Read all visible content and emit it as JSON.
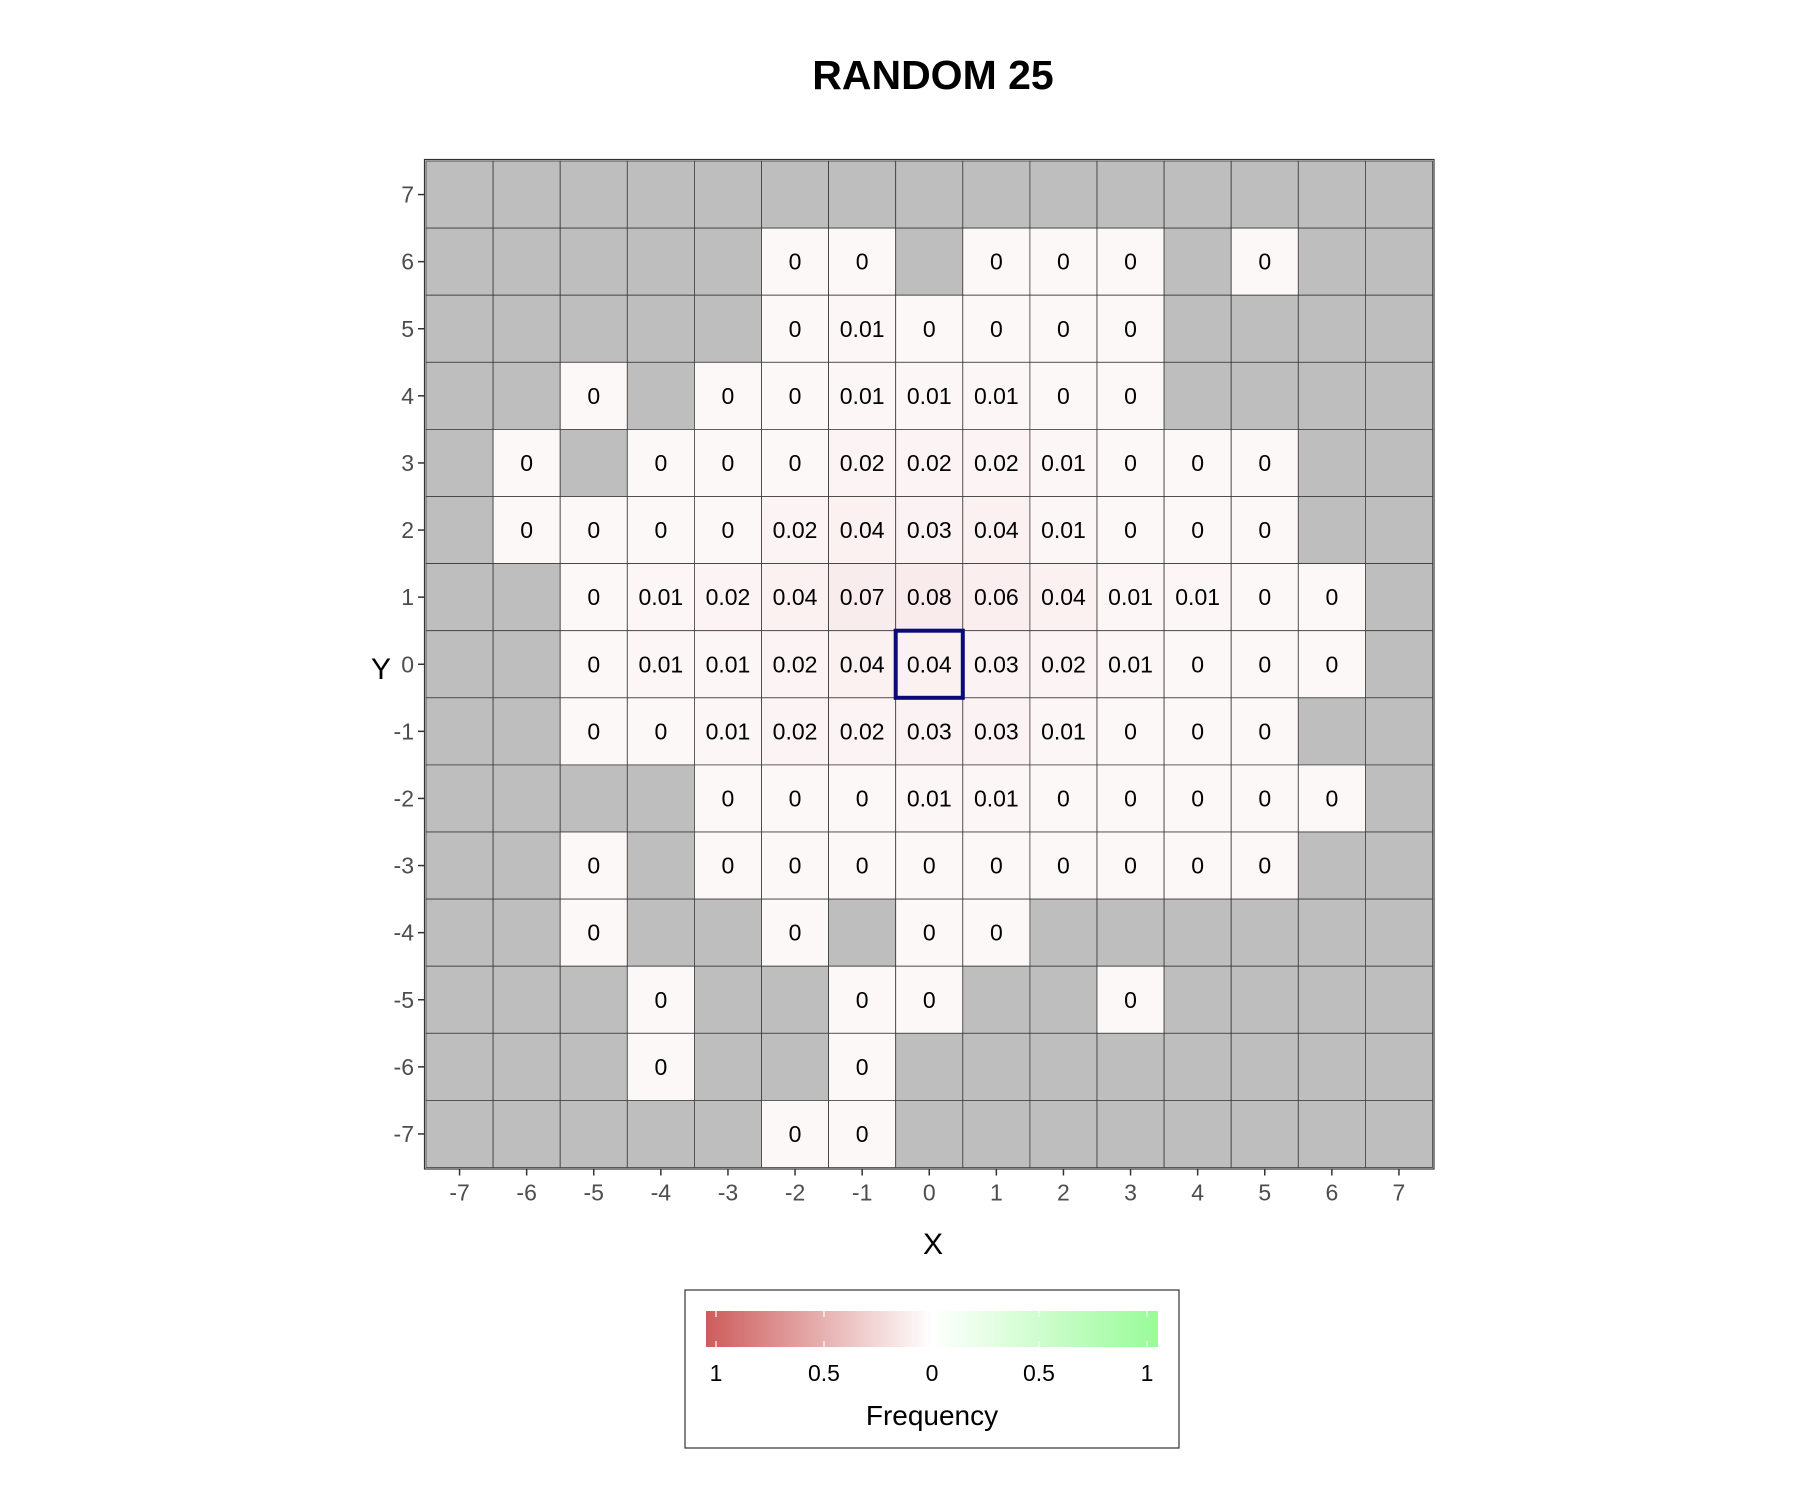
{
  "chart_data": {
    "type": "heatmap",
    "title": "RANDOM 25",
    "xlabel": "X",
    "ylabel": "Y",
    "x": [
      -7,
      -6,
      -5,
      -4,
      -3,
      -2,
      -1,
      0,
      1,
      2,
      3,
      4,
      5,
      6,
      7
    ],
    "y": [
      7,
      6,
      5,
      4,
      3,
      2,
      1,
      0,
      -1,
      -2,
      -3,
      -4,
      -5,
      -6,
      -7
    ],
    "xlim": [
      -7,
      7
    ],
    "ylim": [
      -7,
      7
    ],
    "missing_color": "#bebebe",
    "highlight_cell": {
      "x": 0,
      "y": 0,
      "color": "#0a0a78"
    },
    "values": [
      [
        null,
        null,
        null,
        null,
        null,
        null,
        null,
        null,
        null,
        null,
        null,
        null,
        null,
        null,
        null
      ],
      [
        null,
        null,
        null,
        null,
        null,
        0,
        0,
        null,
        0,
        0,
        0,
        null,
        0,
        null,
        null
      ],
      [
        null,
        null,
        null,
        null,
        null,
        0,
        0.01,
        0,
        0,
        0,
        0,
        null,
        null,
        null,
        null
      ],
      [
        null,
        null,
        0,
        null,
        0,
        0,
        0.01,
        0.01,
        0.01,
        0,
        0,
        null,
        null,
        null,
        null
      ],
      [
        null,
        0,
        null,
        0,
        0,
        0,
        0.02,
        0.02,
        0.02,
        0.01,
        0,
        0,
        0,
        null,
        null
      ],
      [
        null,
        0,
        0,
        0,
        0,
        0.02,
        0.04,
        0.03,
        0.04,
        0.01,
        0,
        0,
        0,
        null,
        null
      ],
      [
        null,
        null,
        0,
        0.01,
        0.02,
        0.04,
        0.07,
        0.08,
        0.06,
        0.04,
        0.01,
        0.01,
        0,
        0,
        null
      ],
      [
        null,
        null,
        0,
        0.01,
        0.01,
        0.02,
        0.04,
        0.04,
        0.03,
        0.02,
        0.01,
        0,
        0,
        0,
        null
      ],
      [
        null,
        null,
        0,
        0,
        0.01,
        0.02,
        0.02,
        0.03,
        0.03,
        0.01,
        0,
        0,
        0,
        null,
        null
      ],
      [
        null,
        null,
        null,
        null,
        0,
        0,
        0,
        0.01,
        0.01,
        0,
        0,
        0,
        0,
        0,
        null
      ],
      [
        null,
        null,
        0,
        null,
        0,
        0,
        0,
        0,
        0,
        0,
        0,
        0,
        0,
        null,
        null
      ],
      [
        null,
        null,
        0,
        null,
        null,
        0,
        null,
        0,
        0,
        null,
        null,
        null,
        null,
        null,
        null
      ],
      [
        null,
        null,
        null,
        0,
        null,
        null,
        0,
        0,
        null,
        null,
        0,
        null,
        null,
        null,
        null
      ],
      [
        null,
        null,
        null,
        0,
        null,
        null,
        0,
        null,
        null,
        null,
        null,
        null,
        null,
        null,
        null
      ],
      [
        null,
        null,
        null,
        null,
        null,
        0,
        0,
        null,
        null,
        null,
        null,
        null,
        null,
        null,
        null
      ]
    ],
    "legend": {
      "title": "Frequency",
      "labels": [
        "1",
        "0.5",
        "0",
        "0.5",
        "1"
      ],
      "colors": {
        "negative": "#cd5c5c",
        "zero": "#ffffff",
        "positive": "#98fb98"
      }
    },
    "grid": false
  }
}
